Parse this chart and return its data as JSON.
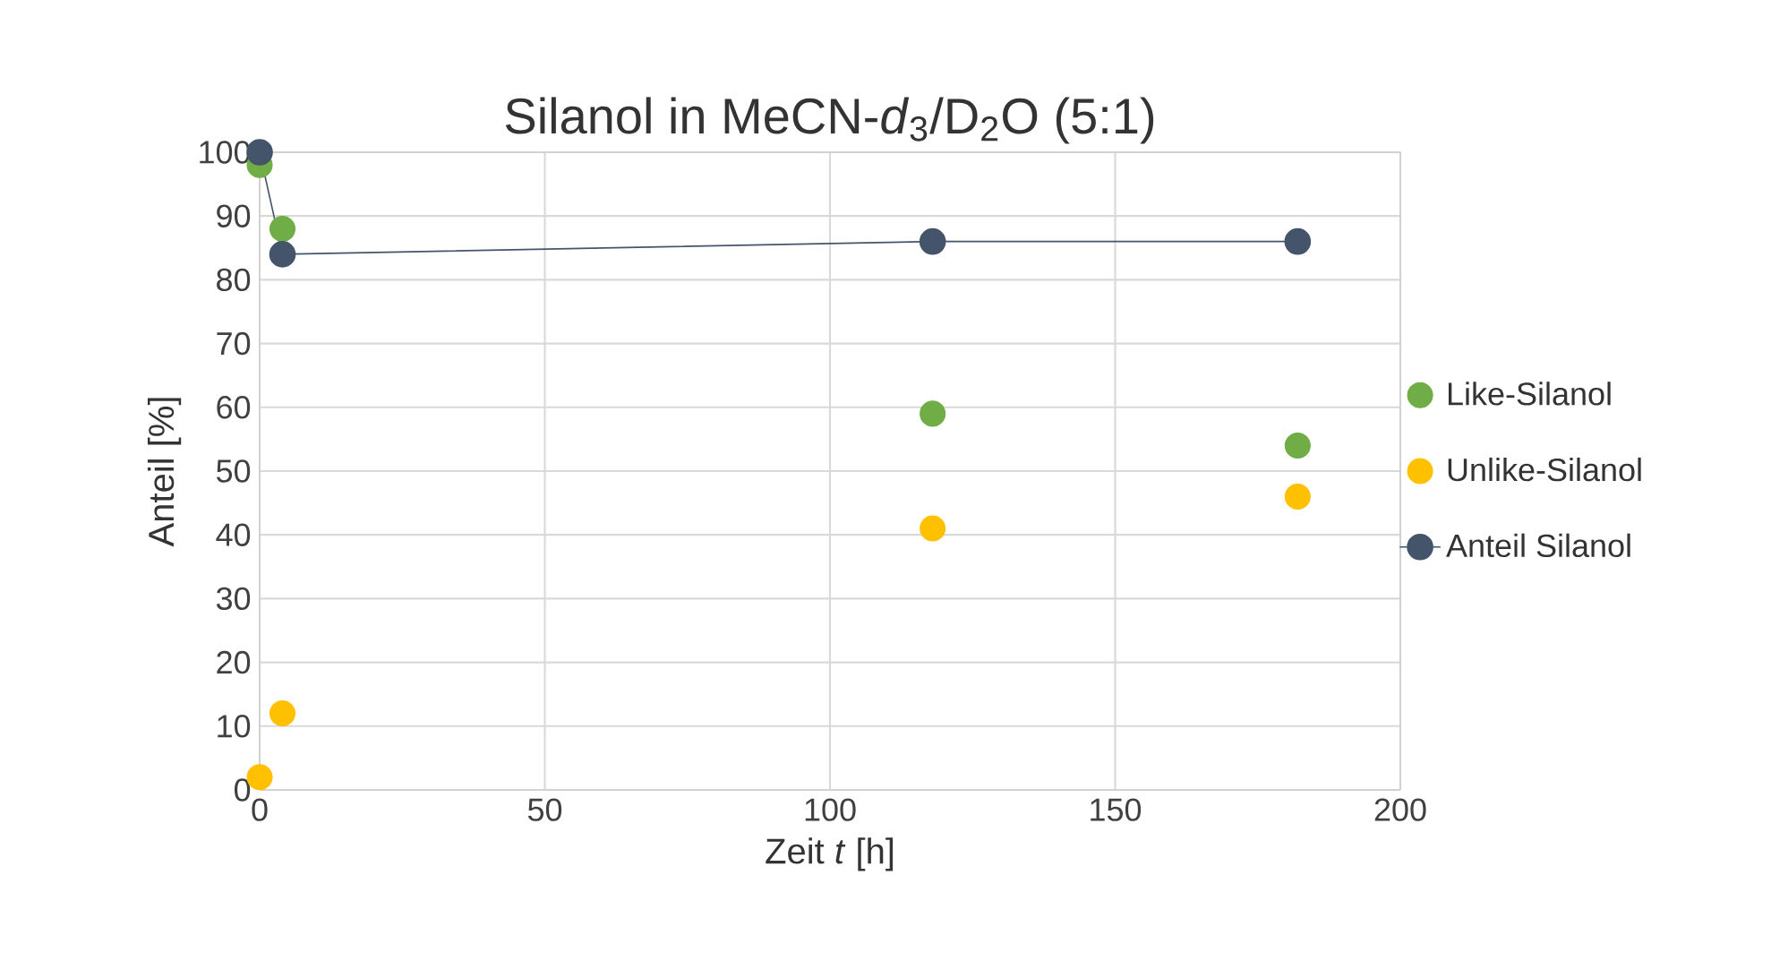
{
  "chart_data": {
    "type": "scatter",
    "title": "Silanol in MeCN-*d*$_{3}$/D$_{2}$O (5:1)",
    "xlabel": "Zeit *t* [h]",
    "ylabel": "Anteil [%]",
    "x": [
      0,
      4,
      118,
      182
    ],
    "series": [
      {
        "name": "Like-Silanol",
        "color": "#70ad47",
        "values": [
          98,
          88,
          59,
          54
        ]
      },
      {
        "name": "Unlike-Silanol",
        "color": "#ffc000",
        "values": [
          2,
          12,
          41,
          46
        ]
      },
      {
        "name": "Anteil Silanol",
        "color": "#44546a",
        "type": "line",
        "line_style": "solid",
        "values": [
          100,
          84,
          86,
          86
        ]
      }
    ],
    "xlim": [
      0,
      200
    ],
    "ylim": [
      0,
      100
    ],
    "xticks": [
      0,
      50,
      100,
      150,
      200
    ],
    "yticks": [
      0,
      10,
      20,
      30,
      40,
      50,
      60,
      70,
      80,
      90,
      100
    ],
    "grid": true,
    "legend": "right",
    "marker": "circle"
  }
}
